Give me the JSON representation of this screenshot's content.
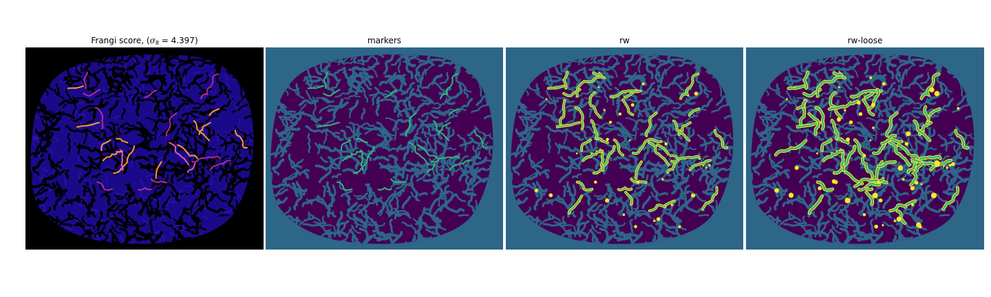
{
  "figure": {
    "panels": [
      {
        "id": "frangi",
        "title_prefix": "Frangi score, (",
        "title_sigma_symbol": "σ",
        "title_sigma_subscript": "8",
        "title_suffix": " = 4.397)",
        "colormap": "magma",
        "background_color": "#000000",
        "tissue_color": "#1a0a8a",
        "highlight_colors": [
          "#ff9a3d",
          "#e85aa8",
          "#b02a9c"
        ]
      },
      {
        "id": "markers",
        "title": "markers",
        "colormap": "viridis",
        "background_color": "#2e6688",
        "tissue_color": "#440154",
        "highlight_colors": [
          "#35b779"
        ]
      },
      {
        "id": "rw",
        "title": "rw",
        "colormap": "viridis",
        "background_color": "#2e6688",
        "tissue_color": "#440154",
        "highlight_colors": [
          "#35b779",
          "#fde725"
        ]
      },
      {
        "id": "rw-loose",
        "title": "rw-loose",
        "colormap": "viridis",
        "background_color": "#2e6688",
        "tissue_color": "#440154",
        "highlight_colors": [
          "#35b779",
          "#fde725"
        ]
      }
    ]
  }
}
